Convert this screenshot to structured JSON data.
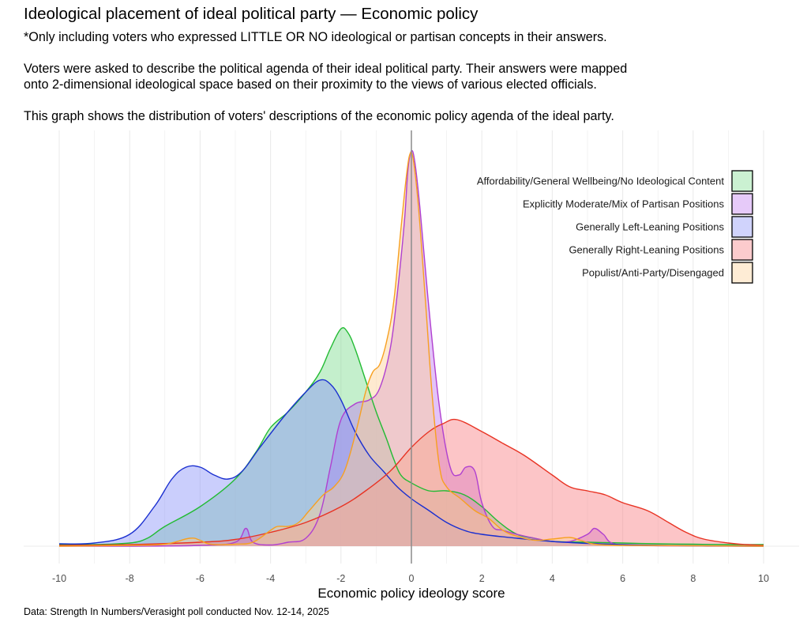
{
  "title": "Ideological placement of ideal political party — Economic policy",
  "subtitle": "*Only including voters who expressed LITTLE OR NO ideological or partisan concepts in their answers.\n\nVoters were asked to describe the political agenda of their ideal political party. Their answers were mapped\nonto 2-dimensional ideological space based on their proximity to the views of various elected officials.\n\nThis graph shows the distribution of voters' descriptions of the economic policy agenda of the ideal party.",
  "caption": "Data: Strength In Numbers/Verasight poll conducted Nov. 12-14, 2025",
  "chart_data": {
    "type": "area",
    "subtype": "density",
    "xlabel": "Economic policy ideology score",
    "ylabel": "",
    "xlim": [
      -10,
      10
    ],
    "ylim": [
      0,
      1
    ],
    "x_ticks": [
      -10,
      -8,
      -6,
      -4,
      -2,
      0,
      2,
      4,
      6,
      8,
      10
    ],
    "reference_line_x": 0,
    "grid": true,
    "legend_position": "top-right",
    "series": [
      {
        "name": "Affordability/General Wellbeing/No Ideological Content",
        "line_color": "#22bb33",
        "fill_color": "#7ddc8e",
        "points": [
          [
            -10,
            0.004
          ],
          [
            -9,
            0.004
          ],
          [
            -8,
            0.008
          ],
          [
            -7.5,
            0.02
          ],
          [
            -7,
            0.05
          ],
          [
            -6,
            0.1
          ],
          [
            -5,
            0.17
          ],
          [
            -4.4,
            0.24
          ],
          [
            -4,
            0.3
          ],
          [
            -3.5,
            0.34
          ],
          [
            -3,
            0.39
          ],
          [
            -2.6,
            0.44
          ],
          [
            -2.3,
            0.5
          ],
          [
            -2,
            0.55
          ],
          [
            -1.8,
            0.54
          ],
          [
            -1.6,
            0.5
          ],
          [
            -1.3,
            0.42
          ],
          [
            -1,
            0.34
          ],
          [
            -0.7,
            0.27
          ],
          [
            -0.5,
            0.22
          ],
          [
            -0.3,
            0.18
          ],
          [
            0,
            0.16
          ],
          [
            0.5,
            0.14
          ],
          [
            1,
            0.14
          ],
          [
            1.5,
            0.13
          ],
          [
            2,
            0.1
          ],
          [
            2.5,
            0.06
          ],
          [
            3,
            0.03
          ],
          [
            3.5,
            0.02
          ],
          [
            4,
            0.012
          ],
          [
            5,
            0.01
          ],
          [
            6,
            0.008
          ],
          [
            7,
            0.006
          ],
          [
            8,
            0.005
          ],
          [
            9,
            0.004
          ],
          [
            10,
            0.004
          ]
        ]
      },
      {
        "name": "Explicitly Moderate/Mix of Partisan Positions",
        "line_color": "#b040d0",
        "fill_color": "#c07af0",
        "points": [
          [
            -10,
            0
          ],
          [
            -8,
            0
          ],
          [
            -6,
            0.002
          ],
          [
            -5,
            0.01
          ],
          [
            -4.7,
            0.045
          ],
          [
            -4.5,
            0.01
          ],
          [
            -4,
            0.003
          ],
          [
            -3.5,
            0.01
          ],
          [
            -3,
            0.02
          ],
          [
            -2.6,
            0.08
          ],
          [
            -2.3,
            0.2
          ],
          [
            -2,
            0.32
          ],
          [
            -1.6,
            0.36
          ],
          [
            -1.2,
            0.37
          ],
          [
            -0.9,
            0.4
          ],
          [
            -0.6,
            0.5
          ],
          [
            -0.4,
            0.64
          ],
          [
            -0.2,
            0.82
          ],
          [
            -0.1,
            0.95
          ],
          [
            0,
            1.0
          ],
          [
            0.1,
            0.97
          ],
          [
            0.25,
            0.85
          ],
          [
            0.5,
            0.6
          ],
          [
            0.8,
            0.35
          ],
          [
            1.1,
            0.2
          ],
          [
            1.35,
            0.18
          ],
          [
            1.55,
            0.2
          ],
          [
            1.8,
            0.19
          ],
          [
            2,
            0.11
          ],
          [
            2.3,
            0.05
          ],
          [
            2.6,
            0.04
          ],
          [
            3,
            0.03
          ],
          [
            3.5,
            0.02
          ],
          [
            4,
            0.012
          ],
          [
            4.5,
            0.012
          ],
          [
            5,
            0.03
          ],
          [
            5.2,
            0.045
          ],
          [
            5.45,
            0.03
          ],
          [
            5.8,
            0.005
          ],
          [
            7,
            0.001
          ],
          [
            10,
            0
          ]
        ]
      },
      {
        "name": "Generally Left-Leaning Positions",
        "line_color": "#1a2fd0",
        "fill_color": "#8a92f8",
        "points": [
          [
            -10,
            0.006
          ],
          [
            -9,
            0.008
          ],
          [
            -8,
            0.03
          ],
          [
            -7.3,
            0.1
          ],
          [
            -6.8,
            0.17
          ],
          [
            -6.4,
            0.2
          ],
          [
            -6,
            0.2
          ],
          [
            -5.6,
            0.18
          ],
          [
            -5.2,
            0.17
          ],
          [
            -4.8,
            0.19
          ],
          [
            -4.3,
            0.25
          ],
          [
            -3.6,
            0.33
          ],
          [
            -3,
            0.39
          ],
          [
            -2.6,
            0.42
          ],
          [
            -2.3,
            0.41
          ],
          [
            -2,
            0.37
          ],
          [
            -1.6,
            0.29
          ],
          [
            -1.2,
            0.23
          ],
          [
            -0.8,
            0.19
          ],
          [
            -0.4,
            0.15
          ],
          [
            0,
            0.12
          ],
          [
            0.5,
            0.09
          ],
          [
            1,
            0.06
          ],
          [
            1.5,
            0.04
          ],
          [
            2,
            0.03
          ],
          [
            3,
            0.02
          ],
          [
            4,
            0.012
          ],
          [
            5,
            0.007
          ],
          [
            6,
            0.004
          ],
          [
            7,
            0.002
          ],
          [
            8,
            0.001
          ],
          [
            10,
            0
          ]
        ]
      },
      {
        "name": "Generally Right-Leaning Positions",
        "line_color": "#e83323",
        "fill_color": "#f87e82",
        "points": [
          [
            -10,
            0.002
          ],
          [
            -8,
            0.004
          ],
          [
            -6,
            0.01
          ],
          [
            -5,
            0.017
          ],
          [
            -4,
            0.035
          ],
          [
            -3,
            0.06
          ],
          [
            -2,
            0.1
          ],
          [
            -1.3,
            0.14
          ],
          [
            -0.6,
            0.19
          ],
          [
            0,
            0.25
          ],
          [
            0.5,
            0.29
          ],
          [
            0.9,
            0.31
          ],
          [
            1.3,
            0.32
          ],
          [
            2,
            0.29
          ],
          [
            2.6,
            0.26
          ],
          [
            3.2,
            0.23
          ],
          [
            4,
            0.18
          ],
          [
            4.5,
            0.15
          ],
          [
            5,
            0.14
          ],
          [
            5.5,
            0.13
          ],
          [
            6,
            0.11
          ],
          [
            6.7,
            0.09
          ],
          [
            7.3,
            0.06
          ],
          [
            7.8,
            0.035
          ],
          [
            8.3,
            0.018
          ],
          [
            9,
            0.008
          ],
          [
            9.5,
            0.004
          ],
          [
            10,
            0.002
          ]
        ]
      },
      {
        "name": "Populist/Anti-Party/Disengaged",
        "line_color": "#f7a020",
        "fill_color": "#fcd096",
        "points": [
          [
            -10,
            0
          ],
          [
            -8,
            0.002
          ],
          [
            -7,
            0.005
          ],
          [
            -6.3,
            0.02
          ],
          [
            -6,
            0.015
          ],
          [
            -5.7,
            0.005
          ],
          [
            -5,
            0.005
          ],
          [
            -4.5,
            0.01
          ],
          [
            -4,
            0.04
          ],
          [
            -3.8,
            0.05
          ],
          [
            -3.5,
            0.05
          ],
          [
            -3.2,
            0.06
          ],
          [
            -2.9,
            0.09
          ],
          [
            -2.5,
            0.13
          ],
          [
            -2.2,
            0.15
          ],
          [
            -1.9,
            0.19
          ],
          [
            -1.6,
            0.28
          ],
          [
            -1.3,
            0.39
          ],
          [
            -1.1,
            0.44
          ],
          [
            -0.9,
            0.46
          ],
          [
            -0.7,
            0.52
          ],
          [
            -0.5,
            0.62
          ],
          [
            -0.3,
            0.8
          ],
          [
            -0.15,
            0.93
          ],
          [
            -0.05,
            0.99
          ],
          [
            0.05,
            0.98
          ],
          [
            0.2,
            0.86
          ],
          [
            0.4,
            0.62
          ],
          [
            0.6,
            0.37
          ],
          [
            0.8,
            0.2
          ],
          [
            1,
            0.15
          ],
          [
            1.4,
            0.12
          ],
          [
            1.8,
            0.09
          ],
          [
            2.2,
            0.07
          ],
          [
            2.6,
            0.04
          ],
          [
            3,
            0.025
          ],
          [
            3.5,
            0.015
          ],
          [
            4,
            0.018
          ],
          [
            4.5,
            0.022
          ],
          [
            4.8,
            0.015
          ],
          [
            5.2,
            0.005
          ],
          [
            6,
            0.002
          ],
          [
            8,
            0.001
          ],
          [
            10,
            0
          ]
        ]
      }
    ]
  }
}
